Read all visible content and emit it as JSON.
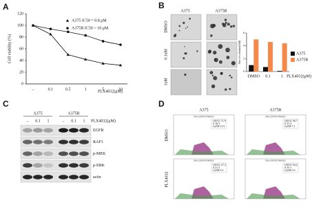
{
  "panel_labels": [
    "A",
    "B",
    "C",
    "D"
  ],
  "chart_data": [
    {
      "type": "line",
      "ylabel": "Cell viability (%)",
      "xlabel": "PLX4032(μM)",
      "categories": [
        "–",
        "0.1",
        "0.5",
        "1",
        "5",
        "10"
      ],
      "ylim": [
        0,
        120
      ],
      "yticks": [
        0,
        20,
        40,
        60,
        80,
        100,
        120
      ],
      "series": [
        {
          "name": "A375 IC50 = 0.8 μM",
          "marker": "triangle",
          "color": "#111111",
          "values": [
            100,
            85,
            50,
            42,
            35,
            32
          ]
        },
        {
          "name": "A375R IC50 > 10 μM",
          "marker": "circle",
          "color": "#111111",
          "values": [
            100,
            94,
            89,
            83,
            73,
            67
          ]
        }
      ]
    },
    {
      "type": "bar",
      "ylabel": "Size of colonies(fold)",
      "xlabel": "PLX4032(μM)",
      "categories": [
        "DMSO",
        "0.1",
        "1"
      ],
      "ylim": [
        0,
        6
      ],
      "yticks": [
        0,
        2,
        4,
        6
      ],
      "series": [
        {
          "name": "A375",
          "color": "#111111",
          "values": [
            1,
            0.7,
            0.1
          ]
        },
        {
          "name": "A375R",
          "color": "#f4894a",
          "values": [
            5,
            4.6,
            4.4
          ]
        }
      ]
    }
  ],
  "colony": {
    "columns": [
      "A375",
      "A375R"
    ],
    "rows": [
      "DMSO",
      "0.1uM",
      "1uM"
    ]
  },
  "western": {
    "cell_lines": [
      "A375",
      "A375R"
    ],
    "lanes": [
      "–",
      "0.1",
      "1",
      "–",
      "0.1",
      "1"
    ],
    "treatment": "PLX4032(μM)",
    "proteins": [
      "EGFR",
      "RAF1",
      "p-MEK",
      "p-ERK",
      "actin"
    ]
  },
  "flow": {
    "columns": [
      "A375",
      "A375R"
    ],
    "rows": [
      "DMSO",
      "PLX4032"
    ],
    "plot_title": "DNA CONTENT PROFILE",
    "stats": [
      [
        [
          "G0/G1 71.9",
          "S 16.3",
          "G2/M 11.9"
        ],
        [
          "G0/G1 56.7",
          "S 31.3",
          "G2/M 7.1"
        ]
      ],
      [
        [
          "G0/G1 27.2",
          "S 21.3",
          "G2/M 9.3"
        ],
        [
          "G0/G1 54.2",
          "S 33.1",
          "G2/M 5.9"
        ]
      ]
    ]
  }
}
